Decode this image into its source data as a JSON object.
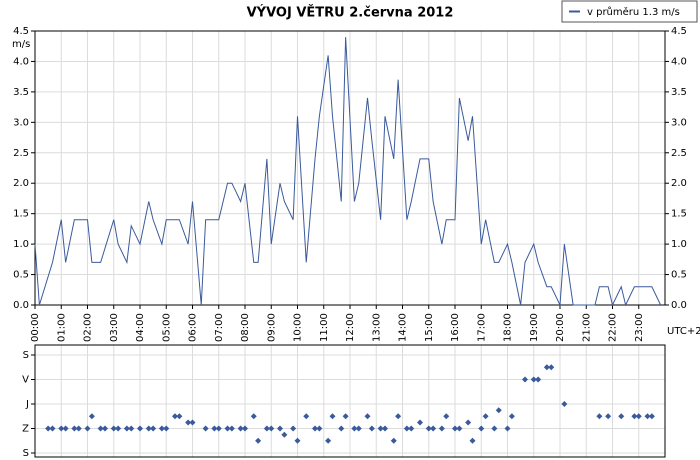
{
  "chart_data": [
    {
      "type": "line",
      "title": "VÝVOJ VĚTRU  2.června 2012",
      "y_label": "m/s",
      "x_label": "UTC+2",
      "legend": "top-right",
      "grid": true,
      "xlim": [
        0,
        1440
      ],
      "xticks": [
        {
          "value": 0,
          "label": "00:00"
        },
        {
          "value": 60,
          "label": "01:00"
        },
        {
          "value": 120,
          "label": "02:00"
        },
        {
          "value": 180,
          "label": "03:00"
        },
        {
          "value": 240,
          "label": "04:00"
        },
        {
          "value": 300,
          "label": "05:00"
        },
        {
          "value": 360,
          "label": "06:00"
        },
        {
          "value": 420,
          "label": "07:00"
        },
        {
          "value": 480,
          "label": "08:00"
        },
        {
          "value": 540,
          "label": "09:00"
        },
        {
          "value": 600,
          "label": "10:00"
        },
        {
          "value": 660,
          "label": "11:00"
        },
        {
          "value": 720,
          "label": "12:00"
        },
        {
          "value": 780,
          "label": "13:00"
        },
        {
          "value": 840,
          "label": "14:00"
        },
        {
          "value": 900,
          "label": "15:00"
        },
        {
          "value": 960,
          "label": "16:00"
        },
        {
          "value": 1020,
          "label": "17:00"
        },
        {
          "value": 1080,
          "label": "18:00"
        },
        {
          "value": 1140,
          "label": "19:00"
        },
        {
          "value": 1200,
          "label": "20:00"
        },
        {
          "value": 1260,
          "label": "21:00"
        },
        {
          "value": 1320,
          "label": "22:00"
        },
        {
          "value": 1380,
          "label": "23:00"
        }
      ],
      "ylim": [
        0,
        4.5
      ],
      "yticks": [
        {
          "value": 0,
          "label": "0.0"
        },
        0.5,
        {
          "value": 1,
          "label": "1.0"
        },
        1.5,
        {
          "value": 2,
          "label": "2.0"
        },
        2.5,
        {
          "value": 3,
          "label": "3.0"
        },
        3.5,
        {
          "value": 4,
          "label": "4.0"
        },
        4.5
      ],
      "x": [
        0,
        10,
        40,
        60,
        70,
        90,
        120,
        130,
        150,
        180,
        190,
        210,
        220,
        240,
        260,
        270,
        290,
        300,
        330,
        350,
        360,
        380,
        390,
        420,
        440,
        450,
        470,
        480,
        500,
        510,
        530,
        540,
        560,
        570,
        590,
        600,
        620,
        640,
        650,
        670,
        680,
        700,
        710,
        730,
        740,
        760,
        770,
        790,
        800,
        820,
        830,
        850,
        860,
        880,
        900,
        910,
        930,
        940,
        960,
        970,
        990,
        1000,
        1020,
        1030,
        1050,
        1060,
        1080,
        1090,
        1110,
        1120,
        1140,
        1150,
        1170,
        1180,
        1200,
        1210,
        1230,
        1250,
        1280,
        1290,
        1310,
        1320,
        1340,
        1350,
        1370,
        1400,
        1410,
        1430
      ],
      "series": [
        {
          "name": "v průměru 1.3 m/s",
          "color": "#3a5a9c",
          "values": [
            1.0,
            0.0,
            0.7,
            1.4,
            0.7,
            1.4,
            1.4,
            0.7,
            0.7,
            1.4,
            1.0,
            0.7,
            1.3,
            1.0,
            1.7,
            1.4,
            1.0,
            1.4,
            1.4,
            1.0,
            1.7,
            0.0,
            1.4,
            1.4,
            2.0,
            2.0,
            1.7,
            2.0,
            0.7,
            0.7,
            2.4,
            1.0,
            2.0,
            1.7,
            1.4,
            3.1,
            0.7,
            2.4,
            3.1,
            4.1,
            3.1,
            1.7,
            4.4,
            1.7,
            2.0,
            3.4,
            2.7,
            1.4,
            3.1,
            2.4,
            3.7,
            1.4,
            1.7,
            2.4,
            2.4,
            1.7,
            1.0,
            1.4,
            1.4,
            3.4,
            2.7,
            3.1,
            1.0,
            1.4,
            0.7,
            0.7,
            1.0,
            0.7,
            0.0,
            0.7,
            1.0,
            0.7,
            0.3,
            0.3,
            0.0,
            1.0,
            0.0,
            0.0,
            0.0,
            0.3,
            0.3,
            0.0,
            0.3,
            0.0,
            0.3,
            0.3,
            0.3,
            0.0
          ]
        }
      ]
    },
    {
      "type": "scatter",
      "grid": true,
      "color": "#3a5a9c",
      "xlim": [
        0,
        1440
      ],
      "ylim": [
        360,
        0
      ],
      "yticks": [
        {
          "value": 0,
          "label": "S"
        },
        {
          "value": 90,
          "label": "V"
        },
        {
          "value": 180,
          "label": "J"
        },
        {
          "value": 270,
          "label": "Z"
        },
        {
          "value": 360,
          "label": "S"
        }
      ],
      "x": [
        30,
        40,
        60,
        70,
        90,
        100,
        120,
        130,
        150,
        160,
        180,
        190,
        210,
        220,
        240,
        260,
        270,
        290,
        300,
        320,
        330,
        350,
        360,
        390,
        410,
        420,
        440,
        450,
        470,
        480,
        500,
        510,
        530,
        540,
        560,
        570,
        590,
        600,
        620,
        640,
        650,
        670,
        680,
        700,
        710,
        730,
        740,
        760,
        770,
        790,
        800,
        820,
        830,
        850,
        860,
        880,
        900,
        910,
        930,
        940,
        960,
        970,
        990,
        1000,
        1020,
        1030,
        1050,
        1060,
        1080,
        1090,
        1120,
        1140,
        1150,
        1170,
        1180,
        1210,
        1290,
        1310,
        1340,
        1370,
        1380,
        1400,
        1410
      ],
      "values": [
        270,
        270,
        270,
        270,
        270,
        270,
        270,
        225,
        270,
        270,
        270,
        270,
        270,
        270,
        270,
        270,
        270,
        270,
        270,
        225,
        225,
        248,
        248,
        270,
        270,
        270,
        270,
        270,
        270,
        270,
        225,
        315,
        270,
        270,
        270,
        293,
        270,
        315,
        225,
        270,
        270,
        315,
        225,
        270,
        225,
        270,
        270,
        225,
        270,
        270,
        270,
        315,
        225,
        270,
        270,
        248,
        270,
        270,
        270,
        225,
        270,
        270,
        248,
        315,
        270,
        225,
        270,
        203,
        270,
        225,
        90,
        90,
        90,
        45,
        45,
        180,
        225,
        225,
        225,
        225,
        225,
        225,
        225
      ]
    }
  ]
}
